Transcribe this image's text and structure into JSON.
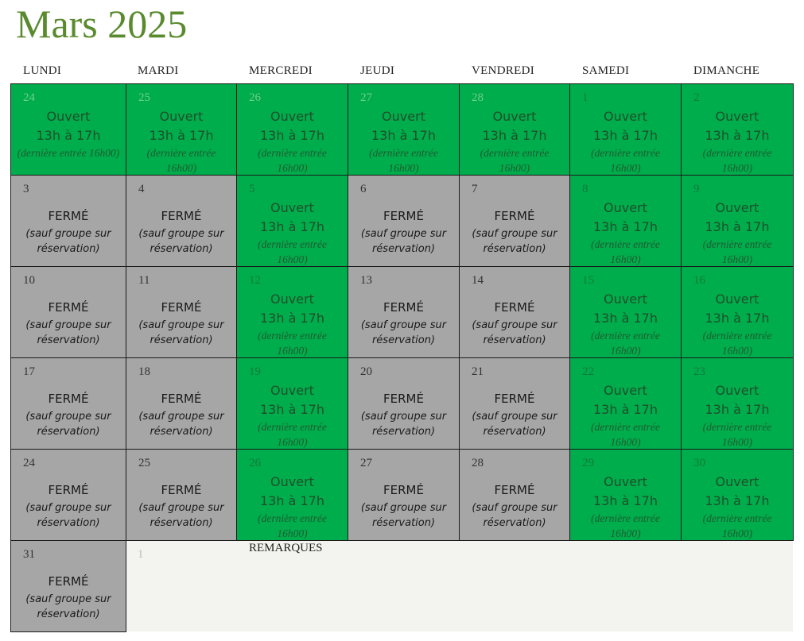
{
  "title": "Mars 2025",
  "weekdays": [
    "LUNDI",
    "MARDI",
    "MERCREDI",
    "JEUDI",
    "VENDREDI",
    "SAMEDI",
    "DIMANCHE"
  ],
  "open_text": {
    "line1": "Ouvert",
    "line2": "13h à 17h",
    "line3": "(dernière entrée 16h00)"
  },
  "closed_text": {
    "line1": "FERMÉ",
    "line2": "(sauf groupe sur réservation)"
  },
  "colors": {
    "open": "#00ad4c",
    "closed": "#a6a6a6",
    "title": "#5a8a2e"
  },
  "weeks": [
    [
      {
        "day": "24",
        "status": "open",
        "month": "prev"
      },
      {
        "day": "25",
        "status": "open",
        "month": "prev"
      },
      {
        "day": "26",
        "status": "open",
        "month": "prev"
      },
      {
        "day": "27",
        "status": "open",
        "month": "prev"
      },
      {
        "day": "28",
        "status": "open",
        "month": "prev"
      },
      {
        "day": "1",
        "status": "open",
        "month": "current"
      },
      {
        "day": "2",
        "status": "open",
        "month": "current"
      }
    ],
    [
      {
        "day": "3",
        "status": "closed"
      },
      {
        "day": "4",
        "status": "closed"
      },
      {
        "day": "5",
        "status": "open"
      },
      {
        "day": "6",
        "status": "closed"
      },
      {
        "day": "7",
        "status": "closed"
      },
      {
        "day": "8",
        "status": "open"
      },
      {
        "day": "9",
        "status": "open"
      }
    ],
    [
      {
        "day": "10",
        "status": "closed"
      },
      {
        "day": "11",
        "status": "closed"
      },
      {
        "day": "12",
        "status": "open"
      },
      {
        "day": "13",
        "status": "closed"
      },
      {
        "day": "14",
        "status": "closed"
      },
      {
        "day": "15",
        "status": "open"
      },
      {
        "day": "16",
        "status": "open"
      }
    ],
    [
      {
        "day": "17",
        "status": "closed"
      },
      {
        "day": "18",
        "status": "closed"
      },
      {
        "day": "19",
        "status": "open"
      },
      {
        "day": "20",
        "status": "closed"
      },
      {
        "day": "21",
        "status": "closed"
      },
      {
        "day": "22",
        "status": "open"
      },
      {
        "day": "23",
        "status": "open"
      }
    ],
    [
      {
        "day": "24",
        "status": "closed"
      },
      {
        "day": "25",
        "status": "closed"
      },
      {
        "day": "26",
        "status": "open"
      },
      {
        "day": "27",
        "status": "closed"
      },
      {
        "day": "28",
        "status": "closed"
      },
      {
        "day": "29",
        "status": "open"
      },
      {
        "day": "30",
        "status": "open"
      }
    ],
    [
      {
        "day": "31",
        "status": "closed"
      }
    ]
  ],
  "next_month_day": "1",
  "remarks_label": "REMARQUES"
}
